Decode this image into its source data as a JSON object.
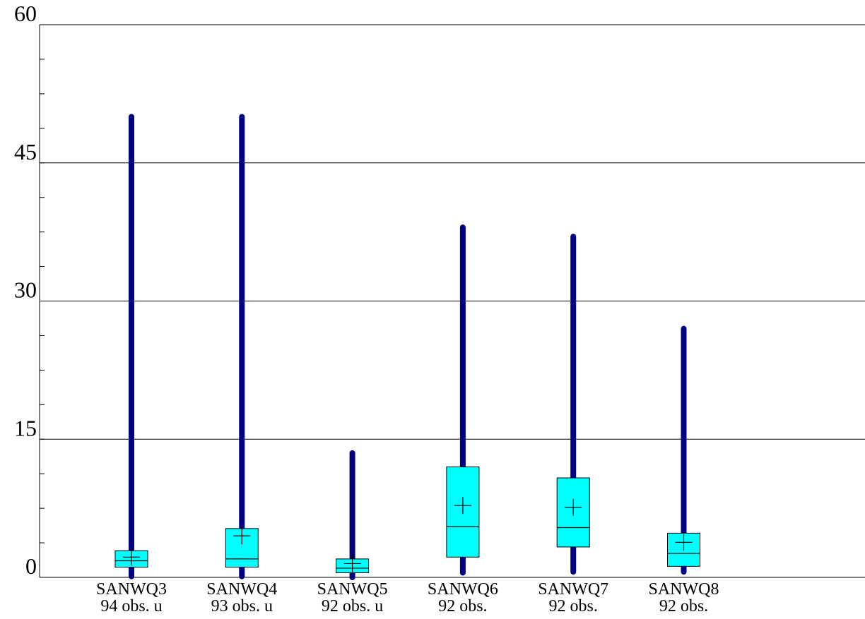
{
  "chart_data": {
    "type": "box",
    "ylim": [
      0,
      60
    ],
    "yticks": [
      0,
      15,
      30,
      45,
      60
    ],
    "ytick_labels": [
      "0",
      "15",
      "30",
      "45",
      "60"
    ],
    "minor_tick_step": 3.75,
    "grid": true,
    "colors": {
      "box_fill": "#00ffff",
      "whisker": "#000080",
      "outline": "#000000"
    },
    "boxes": [
      {
        "name": "SANWQ3",
        "note": "94 obs. u",
        "min": 0.1,
        "q1": 1.1,
        "median": 1.8,
        "q3": 2.9,
        "max": 50.0,
        "mean": 2.2
      },
      {
        "name": "SANWQ4",
        "note": "93 obs. u",
        "min": 0.1,
        "q1": 1.1,
        "median": 2.0,
        "q3": 5.3,
        "max": 50.0,
        "mean": 4.5
      },
      {
        "name": "SANWQ5",
        "note": "92 obs. u",
        "min": 0.0,
        "q1": 0.5,
        "median": 1.0,
        "q3": 2.0,
        "max": 13.5,
        "mean": 1.5
      },
      {
        "name": "SANWQ6",
        "note": "92 obs.",
        "min": 0.5,
        "q1": 2.2,
        "median": 5.5,
        "q3": 12.0,
        "max": 38.0,
        "mean": 7.8
      },
      {
        "name": "SANWQ7",
        "note": "92 obs.",
        "min": 0.6,
        "q1": 3.3,
        "median": 5.4,
        "q3": 10.8,
        "max": 37.0,
        "mean": 7.6
      },
      {
        "name": "SANWQ8",
        "note": "92 obs.",
        "min": 0.6,
        "q1": 1.2,
        "median": 2.6,
        "q3": 4.8,
        "max": 27.0,
        "mean": 3.8
      }
    ]
  }
}
